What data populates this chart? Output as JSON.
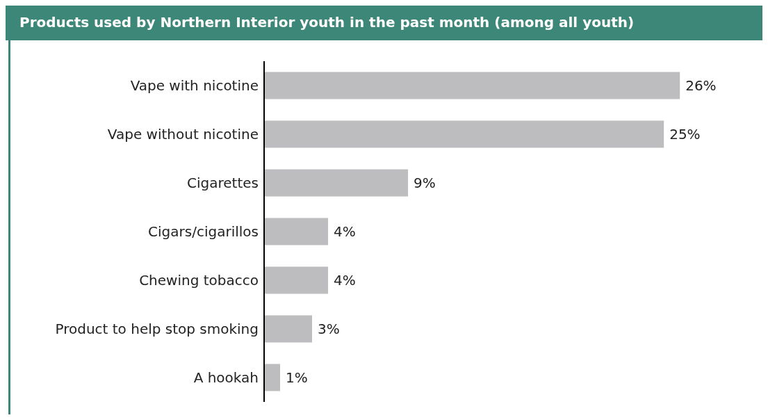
{
  "chart_data": {
    "type": "bar",
    "orientation": "horizontal",
    "title": "Products used by Northern Interior youth in the past month (among all youth)",
    "categories": [
      "Vape with nicotine",
      "Vape without nicotine",
      "Cigarettes",
      "Cigars/cigarillos",
      "Chewing tobacco",
      "Product to help stop smoking",
      "A hookah"
    ],
    "values": [
      26,
      25,
      9,
      4,
      4,
      3,
      1
    ],
    "value_labels": [
      "26%",
      "25%",
      "9%",
      "4%",
      "4%",
      "3%",
      "1%"
    ],
    "color": "#bdbdc0",
    "tick_labels": "y"
  }
}
